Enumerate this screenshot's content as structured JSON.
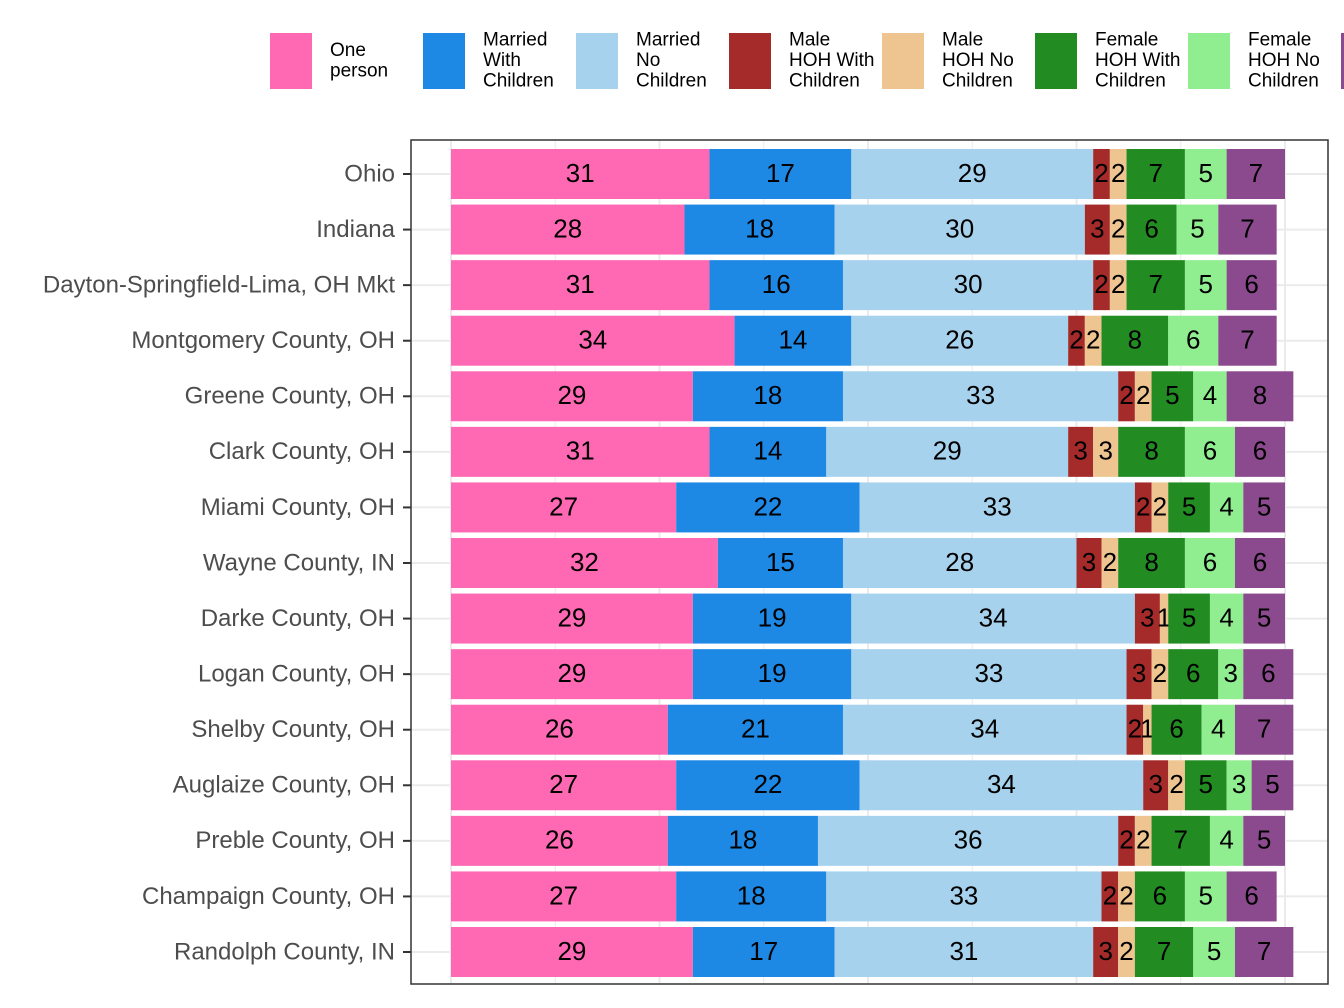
{
  "chart_data": {
    "type": "bar",
    "orientation": "horizontal",
    "stacked": true,
    "normalized_to_100": true,
    "grid": true,
    "legend_position": "top",
    "xlim": [
      0,
      100
    ],
    "title": "",
    "xlabel": "",
    "ylabel": "",
    "categories": [
      "Ohio",
      "Indiana",
      "Dayton-Springfield-Lima, OH Mkt",
      "Montgomery County, OH",
      "Greene County, OH",
      "Clark County, OH",
      "Miami County, OH",
      "Wayne County, IN",
      "Darke County, OH",
      "Logan County, OH",
      "Shelby County, OH",
      "Auglaize County, OH",
      "Preble County, OH",
      "Champaign County, OH",
      "Randolph County, IN"
    ],
    "series": [
      {
        "name": [
          "One",
          "person"
        ],
        "color": "#FF69B4",
        "values": [
          31,
          28,
          31,
          34,
          29,
          31,
          27,
          32,
          29,
          29,
          26,
          27,
          26,
          27,
          29
        ]
      },
      {
        "name": [
          "Married",
          "With",
          "Children"
        ],
        "color": "#1E88E5",
        "values": [
          17,
          18,
          16,
          14,
          18,
          14,
          22,
          15,
          19,
          19,
          21,
          22,
          18,
          18,
          17
        ]
      },
      {
        "name": [
          "Married",
          "No",
          "Children"
        ],
        "color": "#A7D2EE",
        "values": [
          29,
          30,
          30,
          26,
          33,
          29,
          33,
          28,
          34,
          33,
          34,
          34,
          36,
          33,
          31
        ]
      },
      {
        "name": [
          "Male",
          "HOH With",
          "Children"
        ],
        "color": "#A52A2A",
        "values": [
          2,
          3,
          2,
          2,
          2,
          3,
          2,
          3,
          3,
          3,
          2,
          3,
          2,
          2,
          3
        ]
      },
      {
        "name": [
          "Male",
          "HOH No",
          "Children"
        ],
        "color": "#EEC591",
        "values": [
          2,
          2,
          2,
          2,
          2,
          3,
          2,
          2,
          1,
          2,
          1,
          2,
          2,
          2,
          2
        ]
      },
      {
        "name": [
          "Female",
          "HOH With",
          "Children"
        ],
        "color": "#228B22",
        "values": [
          7,
          6,
          7,
          8,
          5,
          8,
          5,
          8,
          5,
          6,
          6,
          5,
          7,
          6,
          7
        ]
      },
      {
        "name": [
          "Female",
          "HOH No",
          "Children"
        ],
        "color": "#90EE90",
        "values": [
          5,
          5,
          5,
          6,
          4,
          6,
          4,
          6,
          4,
          3,
          4,
          3,
          4,
          5,
          5
        ]
      },
      {
        "name": [],
        "color": "#8B4A8E",
        "values": [
          7,
          7,
          6,
          7,
          8,
          6,
          5,
          6,
          5,
          6,
          7,
          5,
          5,
          6,
          7
        ]
      }
    ]
  }
}
